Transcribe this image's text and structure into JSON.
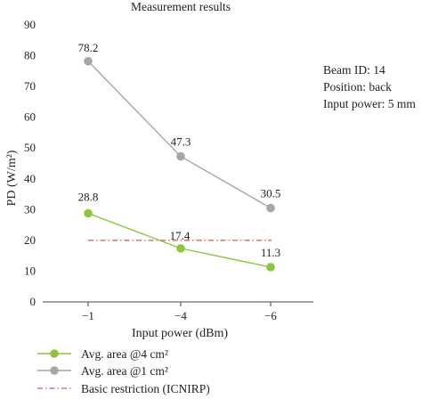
{
  "chart_data": {
    "type": "line",
    "title": "Measurement results",
    "xlabel": "Input power (dBm)",
    "ylabel": "PD (W/m²)",
    "categories": [
      "−1",
      "−4",
      "−6"
    ],
    "ylim": [
      0,
      90
    ],
    "yticks": [
      "0",
      "10",
      "20",
      "30",
      "40",
      "50",
      "60",
      "70",
      "80",
      "90"
    ],
    "grid": false,
    "legend_position": "bottom-left",
    "series": [
      {
        "name": "Avg. area @4 cm²",
        "values": [
          28.8,
          17.4,
          11.3
        ],
        "labels": [
          "28.8",
          "17.4",
          "11.3"
        ],
        "color": "#8cc63f"
      },
      {
        "name": "Avg. area @1 cm²",
        "values": [
          78.2,
          47.3,
          30.5
        ],
        "labels": [
          "78.2",
          "47.3",
          "30.5"
        ],
        "color": "#a6a6a6"
      }
    ],
    "reference_line": {
      "name": "Basic restriction (ICNIRP)",
      "value": 20,
      "color": "#d9534f",
      "style": "dash-dot"
    },
    "annotations": [
      "Beam ID: 14",
      "Position: back",
      "Input power: 5 mm"
    ]
  }
}
